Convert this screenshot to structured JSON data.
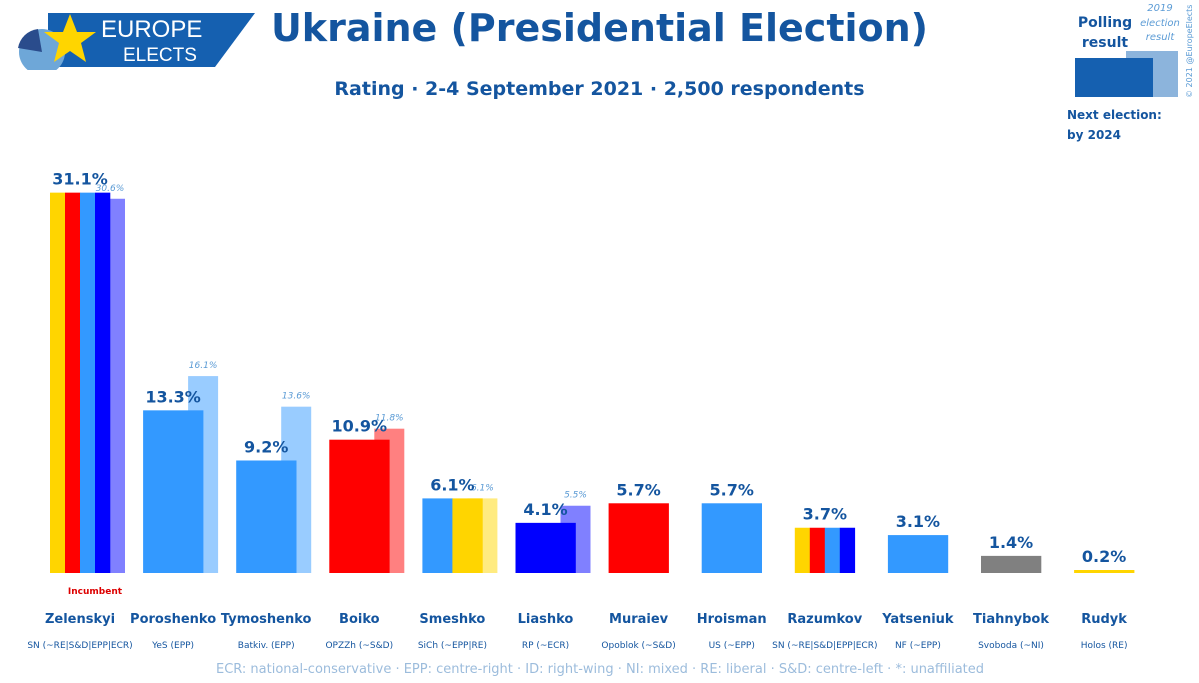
{
  "logo": {
    "line1": "EUROPE",
    "line2": "ELECTS"
  },
  "title": "Ukraine (Presidential Election)",
  "subtitle": "Rating · 2-4 September 2021 · 2,500 respondents",
  "legend": {
    "polling_line1": "Polling",
    "polling_line2": "result",
    "prev_line1": "2019",
    "prev_line2": "election",
    "prev_line3": "result",
    "copyright": "© 2021 @EuropeElects",
    "next_election_line1": "Next election:",
    "next_election_line2": "by 2024",
    "polling_color": "#1560b0",
    "prev_color": "#8cb4dc"
  },
  "footer": "ECR: national-conservative · EPP: centre-right · ID: right-wing · NI: mixed · RE: liberal · S&D: centre-left · *: unaffiliated",
  "chart_data": {
    "type": "bar",
    "ylim": [
      0,
      32
    ],
    "categories": [
      "Zelenskyi",
      "Poroshenko",
      "Tymoshenko",
      "Boiko",
      "Smeshko",
      "Liashko",
      "Muraiev",
      "Hroisman",
      "Razumkov",
      "Yatseniuk",
      "Tiahnybok",
      "Rudyk"
    ],
    "parties": [
      "SN (~RE|S&D|EPP|ECR)",
      "YeS (EPP)",
      "Batkiv. (EPP)",
      "OPZZh (~S&D)",
      "SiCh (~EPP|RE)",
      "RP (~ECR)",
      "Opoblok (~S&D)",
      "US (~EPP)",
      "SN (~RE|S&D|EPP|ECR)",
      "NF (~EPP)",
      "Svoboda (~NI)",
      "Holos (RE)"
    ],
    "values": [
      31.1,
      13.3,
      9.2,
      10.9,
      6.1,
      4.1,
      5.7,
      5.7,
      3.7,
      3.1,
      1.4,
      0.2
    ],
    "value_labels": [
      "31.1%",
      "13.3%",
      "9.2%",
      "10.9%",
      "6.1%",
      "4.1%",
      "5.7%",
      "5.7%",
      "3.7%",
      "3.1%",
      "1.4%",
      "0.2%"
    ],
    "previous_2019": [
      30.6,
      16.1,
      13.6,
      11.8,
      6.1,
      5.5,
      null,
      null,
      null,
      null,
      null,
      null
    ],
    "previous_labels": [
      "30.6%",
      "16.1%",
      "13.6%",
      "11.8%",
      "6.1%",
      "5.5%",
      "",
      "",
      "",
      "",
      "",
      ""
    ],
    "bar_colors": [
      [
        "#ffd500",
        "#ff0000",
        "#3399ff",
        "#0000ff"
      ],
      [
        "#3399ff"
      ],
      [
        "#3399ff"
      ],
      [
        "#ff0000"
      ],
      [
        "#3399ff",
        "#ffd500"
      ],
      [
        "#0000ff"
      ],
      [
        "#ff0000"
      ],
      [
        "#3399ff"
      ],
      [
        "#ffd500",
        "#ff0000",
        "#3399ff",
        "#0000ff"
      ],
      [
        "#3399ff"
      ],
      [
        "#808080"
      ],
      [
        "#ffd500"
      ]
    ],
    "previous_colors": [
      "#8080ff",
      "#99ccff",
      "#99ccff",
      "#ff8080",
      "#ffeb80",
      "#8080ff",
      null,
      null,
      null,
      null,
      null,
      null
    ],
    "annotations": [
      {
        "category": "Zelenskyi",
        "text": "Incumbent",
        "color": "#dd0000"
      }
    ],
    "value_label_color": "#14559f",
    "previous_label_color": "#5b9bd5"
  }
}
